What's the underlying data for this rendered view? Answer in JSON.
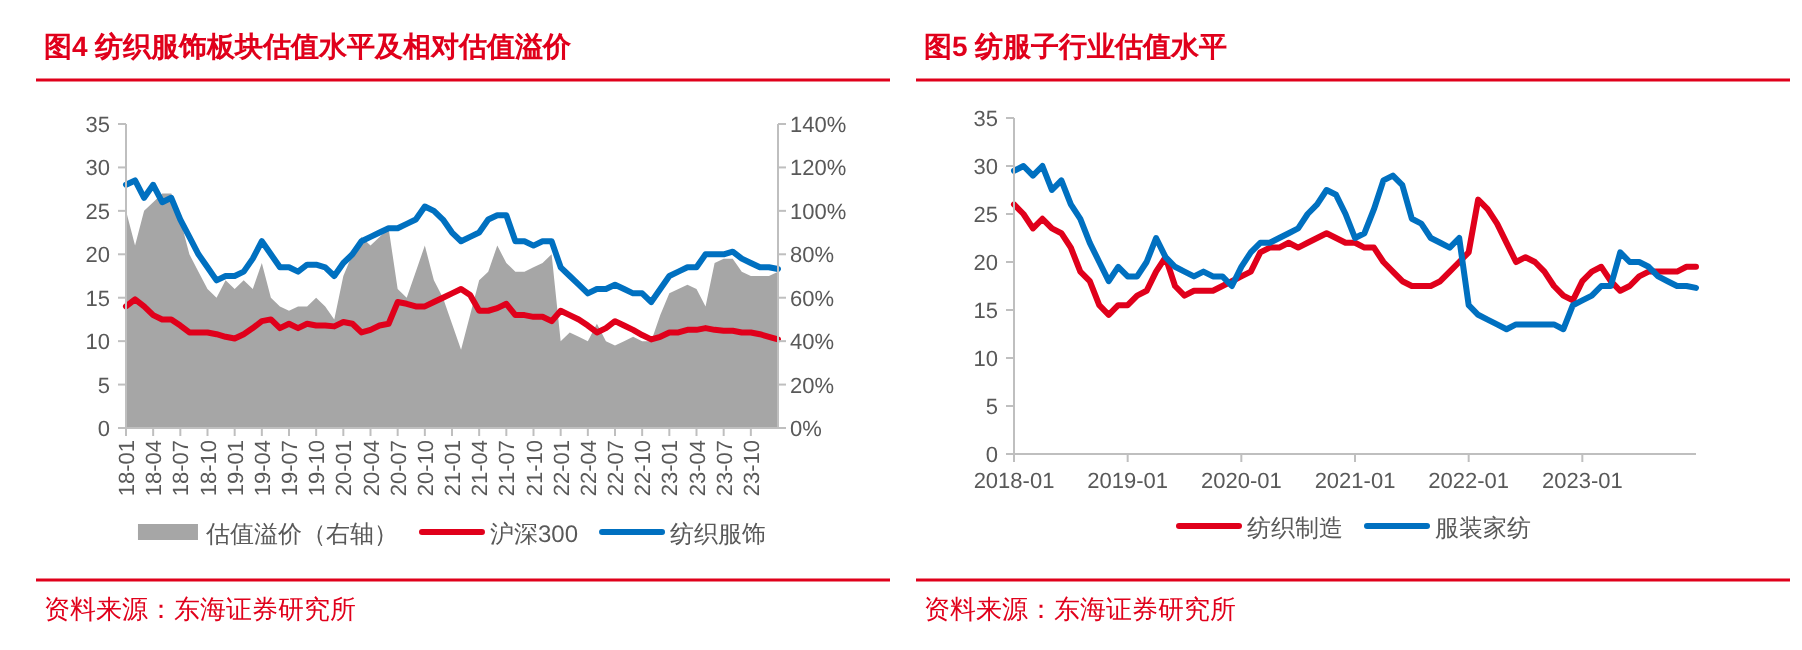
{
  "chart_data": [
    {
      "type": "line",
      "title": "图4  纺织服饰板块估值水平及相对估值溢价",
      "annotations": [
        "资料来源：东海证券研究所"
      ],
      "x": [
        "2018-01",
        "2018-02",
        "2018-03",
        "2018-04",
        "2018-05",
        "2018-06",
        "2018-07",
        "2018-08",
        "2018-09",
        "2018-10",
        "2018-11",
        "2018-12",
        "2019-01",
        "2019-02",
        "2019-03",
        "2019-04",
        "2019-05",
        "2019-06",
        "2019-07",
        "2019-08",
        "2019-09",
        "2019-10",
        "2019-11",
        "2019-12",
        "2020-01",
        "2020-02",
        "2020-03",
        "2020-04",
        "2020-05",
        "2020-06",
        "2020-07",
        "2020-08",
        "2020-09",
        "2020-10",
        "2020-11",
        "2020-12",
        "2021-01",
        "2021-02",
        "2021-03",
        "2021-04",
        "2021-05",
        "2021-06",
        "2021-07",
        "2021-08",
        "2021-09",
        "2021-10",
        "2021-11",
        "2021-12",
        "2022-01",
        "2022-02",
        "2022-03",
        "2022-04",
        "2022-05",
        "2022-06",
        "2022-07",
        "2022-08",
        "2022-09",
        "2022-10",
        "2022-11",
        "2022-12",
        "2023-01",
        "2023-02",
        "2023-03",
        "2023-04",
        "2023-05",
        "2023-06",
        "2023-07",
        "2023-08",
        "2023-09",
        "2023-10",
        "2023-11",
        "2023-12",
        "2024-01"
      ],
      "xlim": [
        "2018-01",
        "2024-01"
      ],
      "xticks": [
        {
          "value": "2018-01",
          "label": "18-01"
        },
        {
          "value": "2018-04",
          "label": "18-04"
        },
        {
          "value": "2018-07",
          "label": "18-07"
        },
        {
          "value": "2018-10",
          "label": "18-10"
        },
        {
          "value": "2019-01",
          "label": "19-01"
        },
        {
          "value": "2019-04",
          "label": "19-04"
        },
        {
          "value": "2019-07",
          "label": "19-07"
        },
        {
          "value": "2019-10",
          "label": "19-10"
        },
        {
          "value": "2020-01",
          "label": "20-01"
        },
        {
          "value": "2020-04",
          "label": "20-04"
        },
        {
          "value": "2020-07",
          "label": "20-07"
        },
        {
          "value": "2020-10",
          "label": "20-10"
        },
        {
          "value": "2021-01",
          "label": "21-01"
        },
        {
          "value": "2021-04",
          "label": "21-04"
        },
        {
          "value": "2021-07",
          "label": "21-07"
        },
        {
          "value": "2021-10",
          "label": "21-10"
        },
        {
          "value": "2022-01",
          "label": "22-01"
        },
        {
          "value": "2022-04",
          "label": "22-04"
        },
        {
          "value": "2022-07",
          "label": "22-07"
        },
        {
          "value": "2022-10",
          "label": "22-10"
        },
        {
          "value": "2023-01",
          "label": "23-01"
        },
        {
          "value": "2023-04",
          "label": "23-04"
        },
        {
          "value": "2023-07",
          "label": "23-07"
        },
        {
          "value": "2023-10",
          "label": "23-10"
        }
      ],
      "ylim": [
        0,
        35
      ],
      "yticks": [
        0,
        5,
        10,
        15,
        20,
        25,
        30,
        35
      ],
      "y2lim": [
        0,
        140
      ],
      "y2ticks": [
        {
          "value": 0,
          "label": "0%"
        },
        {
          "value": 20,
          "label": "20%"
        },
        {
          "value": 40,
          "label": "40%"
        },
        {
          "value": 60,
          "label": "60%"
        },
        {
          "value": 80,
          "label": "80%"
        },
        {
          "value": 100,
          "label": "100%"
        },
        {
          "value": 120,
          "label": "120%"
        },
        {
          "value": 140,
          "label": "140%"
        }
      ],
      "legend": "bottom",
      "series": [
        {
          "name": "估值溢价（右轴）",
          "type": "area",
          "axis": "y2",
          "color": "#a6a6a6",
          "values": [
            100,
            84,
            100,
            104,
            108,
            108,
            96,
            80,
            72,
            64,
            60,
            68,
            64,
            68,
            64,
            76,
            60,
            56,
            54,
            56,
            56,
            60,
            56,
            50,
            70,
            80,
            88,
            84,
            88,
            92,
            64,
            60,
            72,
            84,
            68,
            60,
            48,
            36,
            52,
            68,
            72,
            84,
            76,
            72,
            72,
            74,
            76,
            80,
            40,
            44,
            42,
            40,
            48,
            40,
            38,
            40,
            42,
            40,
            40,
            52,
            62,
            64,
            66,
            64,
            56,
            76,
            78,
            78,
            72,
            70,
            70,
            70,
            72
          ]
        },
        {
          "name": "沪深300",
          "color": "#e0001b",
          "values": [
            14,
            14.8,
            14,
            13,
            12.5,
            12.5,
            11.8,
            11,
            11,
            11,
            10.8,
            10.5,
            10.3,
            10.8,
            11.5,
            12.3,
            12.5,
            11.5,
            12,
            11.5,
            12,
            11.8,
            11.8,
            11.7,
            12.2,
            12,
            11,
            11.3,
            11.8,
            12,
            14.5,
            14.3,
            14,
            14,
            14.5,
            15,
            15.5,
            16,
            15.3,
            13.5,
            13.5,
            13.8,
            14.3,
            13,
            13,
            12.8,
            12.8,
            12.3,
            13.5,
            13,
            12.5,
            11.8,
            11,
            11.5,
            12.3,
            11.8,
            11.3,
            10.7,
            10.2,
            10.5,
            11,
            11,
            11.3,
            11.3,
            11.5,
            11.3,
            11.2,
            11.2,
            11,
            11,
            10.8,
            10.5,
            10.2
          ]
        },
        {
          "name": "纺织服饰",
          "color": "#0070c0",
          "values": [
            28,
            28.5,
            26.5,
            28,
            26,
            26.5,
            24,
            22,
            20,
            18.5,
            17,
            17.5,
            17.5,
            18,
            19.5,
            21.5,
            20,
            18.5,
            18.5,
            18,
            18.8,
            18.8,
            18.5,
            17.5,
            19,
            20,
            21.5,
            22,
            22.5,
            23,
            23,
            23.5,
            24,
            25.5,
            25,
            24,
            22.5,
            21.5,
            22,
            22.5,
            24,
            24.5,
            24.5,
            21.5,
            21.5,
            21,
            21.5,
            21.5,
            18.5,
            17.5,
            16.5,
            15.5,
            16,
            16,
            16.5,
            16,
            15.5,
            15.5,
            14.5,
            16,
            17.5,
            18,
            18.5,
            18.5,
            20,
            20,
            20,
            20.3,
            19.5,
            19,
            18.5,
            18.5,
            18.3
          ]
        }
      ]
    },
    {
      "type": "line",
      "title": "图5  纺服子行业估值水平",
      "annotations": [
        "资料来源：东海证券研究所"
      ],
      "x": [
        "2018-01",
        "2018-02",
        "2018-03",
        "2018-04",
        "2018-05",
        "2018-06",
        "2018-07",
        "2018-08",
        "2018-09",
        "2018-10",
        "2018-11",
        "2018-12",
        "2019-01",
        "2019-02",
        "2019-03",
        "2019-04",
        "2019-05",
        "2019-06",
        "2019-07",
        "2019-08",
        "2019-09",
        "2019-10",
        "2019-11",
        "2019-12",
        "2020-01",
        "2020-02",
        "2020-03",
        "2020-04",
        "2020-05",
        "2020-06",
        "2020-07",
        "2020-08",
        "2020-09",
        "2020-10",
        "2020-11",
        "2020-12",
        "2021-01",
        "2021-02",
        "2021-03",
        "2021-04",
        "2021-05",
        "2021-06",
        "2021-07",
        "2021-08",
        "2021-09",
        "2021-10",
        "2021-11",
        "2021-12",
        "2022-01",
        "2022-02",
        "2022-03",
        "2022-04",
        "2022-05",
        "2022-06",
        "2022-07",
        "2022-08",
        "2022-09",
        "2022-10",
        "2022-11",
        "2022-12",
        "2023-01",
        "2023-02",
        "2023-03",
        "2023-04",
        "2023-05",
        "2023-06",
        "2023-07",
        "2023-08",
        "2023-09",
        "2023-10",
        "2023-11",
        "2023-12",
        "2024-01"
      ],
      "xlim": [
        "2018-01",
        "2024-01"
      ],
      "xticks": [
        "2018-01",
        "2019-01",
        "2020-01",
        "2021-01",
        "2022-01",
        "2023-01"
      ],
      "ylim": [
        0,
        35
      ],
      "yticks": [
        0,
        5,
        10,
        15,
        20,
        25,
        30,
        35
      ],
      "legend": "bottom",
      "series": [
        {
          "name": "纺织制造",
          "color": "#e0001b",
          "values": [
            26,
            25,
            23.5,
            24.5,
            23.5,
            23,
            21.5,
            19,
            18,
            15.5,
            14.5,
            15.5,
            15.5,
            16.5,
            17,
            19,
            20.5,
            17.5,
            16.5,
            17,
            17,
            17,
            17.5,
            18,
            18.5,
            19,
            21,
            21.5,
            21.5,
            22,
            21.5,
            22,
            22.5,
            23,
            22.5,
            22,
            22,
            21.5,
            21.5,
            20,
            19,
            18,
            17.5,
            17.5,
            17.5,
            18,
            19,
            20,
            21,
            26.5,
            25.5,
            24,
            22,
            20,
            20.5,
            20,
            19,
            17.5,
            16.5,
            16,
            18,
            19,
            19.5,
            18,
            17,
            17.5,
            18.5,
            19,
            19,
            19,
            19,
            19.5,
            19.5
          ]
        },
        {
          "name": "服装家纺",
          "color": "#0070c0",
          "values": [
            29.5,
            30,
            29,
            30,
            27.5,
            28.5,
            26,
            24.5,
            22,
            20,
            18,
            19.5,
            18.5,
            18.5,
            20,
            22.5,
            20.5,
            19.5,
            19,
            18.5,
            19,
            18.5,
            18.5,
            17.5,
            19.5,
            21,
            22,
            22,
            22.5,
            23,
            23.5,
            25,
            26,
            27.5,
            27,
            25,
            22.5,
            23,
            25.5,
            28.5,
            29,
            28,
            24.5,
            24,
            22.5,
            22,
            21.5,
            22.5,
            15.5,
            14.5,
            14,
            13.5,
            13,
            13.5,
            13.5,
            13.5,
            13.5,
            13.5,
            13,
            15.5,
            16,
            16.5,
            17.5,
            17.5,
            21,
            20,
            20,
            19.5,
            18.5,
            18,
            17.5,
            17.5,
            17.3
          ]
        }
      ]
    }
  ]
}
